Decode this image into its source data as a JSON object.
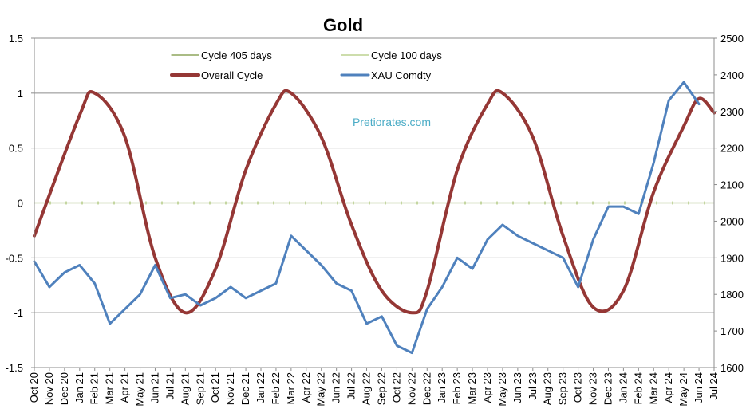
{
  "chart_data": {
    "type": "line",
    "title": "Gold",
    "watermark": "Pretiorates.com",
    "legend_placement": "top-center",
    "grid": "horizontal",
    "y_left": {
      "min": -1.5,
      "max": 1.5,
      "step": 0.5,
      "ticks": [
        "1.5",
        "1",
        "0.5",
        "0",
        "-0.5",
        "-1",
        "-1.5"
      ]
    },
    "y_right": {
      "min": 1600,
      "max": 2500,
      "step": 100,
      "ticks": [
        "2500",
        "2400",
        "2300",
        "2200",
        "2100",
        "2000",
        "1900",
        "1800",
        "1700",
        "1600"
      ]
    },
    "x_ticks": [
      "Oct 20",
      "Nov 20",
      "Dec 20",
      "Jan 21",
      "Feb 21",
      "Mar 21",
      "Apr 21",
      "May 21",
      "Jun 21",
      "Jul 21",
      "Aug 21",
      "Sep 21",
      "Oct 21",
      "Nov 21",
      "Dec 21",
      "Jan 22",
      "Feb 22",
      "Mar 22",
      "Apr 22",
      "May 22",
      "Jun 22",
      "Jul 22",
      "Aug 22",
      "Sep 22",
      "Oct 22",
      "Nov 22",
      "Dec 22",
      "Jan 23",
      "Feb 23",
      "Mar 23",
      "Apr 23",
      "May 23",
      "Jun 23",
      "Jul 23",
      "Aug 23",
      "Sep 23",
      "Oct 23",
      "Nov 23",
      "Dec 23",
      "Jan 24",
      "Feb 24",
      "Mar 24",
      "Apr 24",
      "May 24",
      "Jun 24",
      "Jul 24"
    ],
    "series": [
      {
        "name": "Cycle 405 days",
        "axis": "left",
        "color": "#77933C",
        "style": "thin",
        "x": [
          "Oct 20",
          "Jul 24"
        ],
        "values": [
          0,
          0
        ]
      },
      {
        "name": "Cycle 100 days",
        "axis": "left",
        "color": "#9BBB59",
        "style": "thin-markers",
        "x": [
          "Oct 20",
          "Jul 24"
        ],
        "values": [
          0,
          0
        ]
      },
      {
        "name": "Overall Cycle",
        "axis": "left",
        "color": "#953735",
        "style": "thick",
        "x": [
          "Oct 20",
          "Jan 21",
          "Feb 21",
          "Apr 21",
          "Jun 21",
          "Aug 21",
          "Oct 21",
          "Dec 21",
          "Feb 22",
          "Mar 22",
          "May 22",
          "Jul 22",
          "Sep 22",
          "Nov 22",
          "Dec 22",
          "Feb 23",
          "Apr 23",
          "May 23",
          "Jul 23",
          "Sep 23",
          "Nov 23",
          "Jan 24",
          "Mar 24",
          "May 24",
          "Jun 24",
          "Jul 24"
        ],
        "values": [
          -0.3,
          0.8,
          1.0,
          0.6,
          -0.5,
          -1.0,
          -0.6,
          0.3,
          0.9,
          1.0,
          0.6,
          -0.2,
          -0.8,
          -1.0,
          -0.8,
          0.3,
          0.9,
          1.0,
          0.6,
          -0.3,
          -0.95,
          -0.8,
          0.1,
          0.7,
          0.95,
          0.82
        ]
      },
      {
        "name": "XAU Comdty",
        "axis": "right",
        "color": "#4F81BD",
        "style": "medium",
        "x": [
          "Oct 20",
          "Nov 20",
          "Dec 20",
          "Jan 21",
          "Feb 21",
          "Mar 21",
          "Apr 21",
          "May 21",
          "Jun 21",
          "Jul 21",
          "Aug 21",
          "Sep 21",
          "Oct 21",
          "Nov 21",
          "Dec 21",
          "Jan 22",
          "Feb 22",
          "Mar 22",
          "Apr 22",
          "May 22",
          "Jun 22",
          "Jul 22",
          "Aug 22",
          "Sep 22",
          "Oct 22",
          "Nov 22",
          "Dec 22",
          "Jan 23",
          "Feb 23",
          "Mar 23",
          "Apr 23",
          "May 23",
          "Jun 23",
          "Jul 23",
          "Aug 23",
          "Sep 23",
          "Oct 23",
          "Nov 23",
          "Dec 23",
          "Jan 24",
          "Feb 24",
          "Mar 24",
          "Apr 24",
          "May 24",
          "Jun 24"
        ],
        "values": [
          1890,
          1820,
          1860,
          1880,
          1830,
          1720,
          1760,
          1800,
          1880,
          1790,
          1800,
          1770,
          1790,
          1820,
          1790,
          1810,
          1830,
          1960,
          1920,
          1880,
          1830,
          1810,
          1720,
          1740,
          1660,
          1640,
          1760,
          1820,
          1900,
          1870,
          1950,
          1990,
          1960,
          1940,
          1920,
          1900,
          1820,
          1950,
          2040,
          2040,
          2020,
          2160,
          2330,
          2380,
          2320
        ]
      }
    ]
  }
}
